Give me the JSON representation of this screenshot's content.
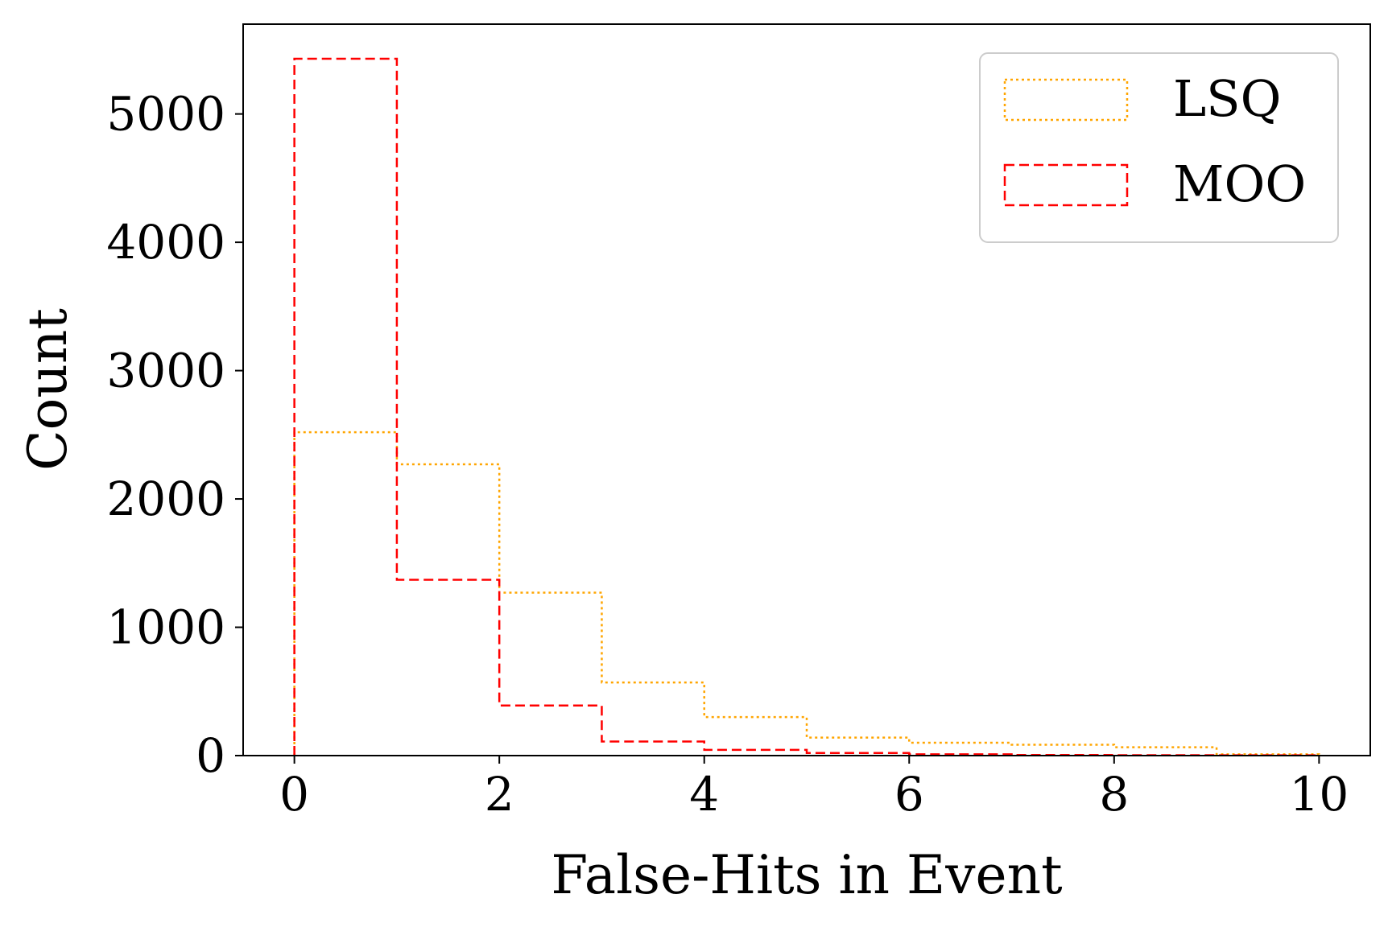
{
  "chart_data": {
    "type": "histogram",
    "title": "",
    "xlabel": "False-Hits in Event",
    "ylabel": "Count",
    "bin_edges": [
      0,
      1,
      2,
      3,
      4,
      5,
      6,
      7,
      8,
      9,
      10
    ],
    "xlim": [
      -0.5,
      10.5
    ],
    "ylim": [
      0,
      5700
    ],
    "x_ticks": [
      "0",
      "2",
      "4",
      "6",
      "8",
      "10"
    ],
    "y_ticks": [
      "0",
      "1000",
      "2000",
      "3000",
      "4000",
      "5000"
    ],
    "grid": false,
    "legend": {
      "placement": "top-right"
    },
    "series": [
      {
        "name": "LSQ",
        "color": "#FFA500",
        "linestyle": "dotted",
        "values": [
          2520,
          2270,
          1270,
          570,
          300,
          140,
          100,
          85,
          65,
          10
        ]
      },
      {
        "name": "MOO",
        "color": "#FF0000",
        "linestyle": "dashed",
        "values": [
          5430,
          1370,
          390,
          110,
          45,
          20,
          10,
          5,
          3,
          2
        ]
      }
    ]
  }
}
